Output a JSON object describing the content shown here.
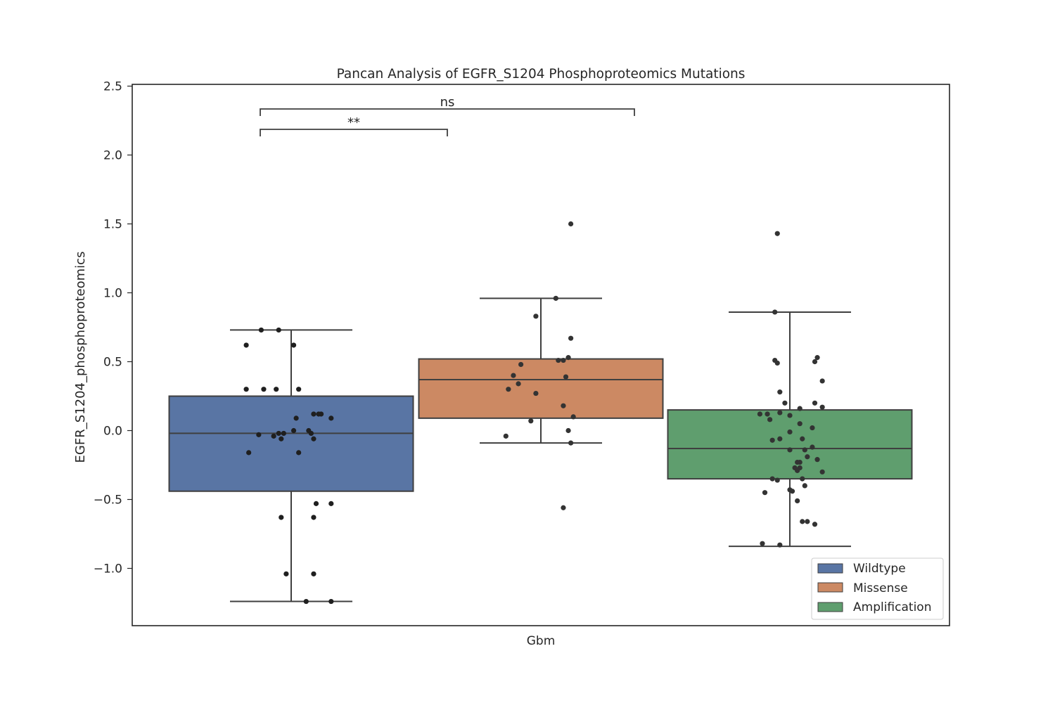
{
  "chart_data": {
    "type": "box",
    "title": "Pancan Analysis of EGFR_S1204 Phosphoproteomics Mutations",
    "xlabel": "Gbm",
    "ylabel": "EGFR_S1204_phosphoproteomics",
    "ylim": [
      -1.4,
      2.52
    ],
    "yticks": [
      -1.0,
      -0.5,
      0.0,
      0.5,
      1.0,
      1.5,
      2.0,
      2.5
    ],
    "ytick_labels": [
      "−1.0",
      "−0.5",
      "0.0",
      "0.5",
      "1.0",
      "1.5",
      "2.0",
      "2.5"
    ],
    "categories": [
      "Gbm"
    ],
    "grid": false,
    "legend_position": "lower-right",
    "series": [
      {
        "name": "Wildtype",
        "color": "#5975a4",
        "box": {
          "whisker_low": -1.24,
          "q1": -0.44,
          "median": -0.02,
          "q3": 0.25,
          "whisker_high": 0.73
        },
        "points": [
          [
            -0.18,
            0.62
          ],
          [
            0.01,
            0.62
          ],
          [
            -0.12,
            0.73
          ],
          [
            -0.05,
            0.73
          ],
          [
            -0.18,
            0.3
          ],
          [
            -0.11,
            0.3
          ],
          [
            -0.06,
            0.3
          ],
          [
            0.03,
            0.3
          ],
          [
            0.12,
            0.12
          ],
          [
            0.11,
            0.12
          ],
          [
            0.09,
            0.12
          ],
          [
            0.16,
            0.09
          ],
          [
            0.02,
            0.09
          ],
          [
            -0.13,
            -0.03
          ],
          [
            -0.07,
            -0.04
          ],
          [
            -0.05,
            -0.02
          ],
          [
            -0.03,
            -0.02
          ],
          [
            -0.04,
            -0.06
          ],
          [
            0.01,
            0.0
          ],
          [
            0.07,
            0.0
          ],
          [
            0.08,
            -0.02
          ],
          [
            0.09,
            -0.06
          ],
          [
            -0.17,
            -0.16
          ],
          [
            0.03,
            -0.16
          ],
          [
            0.1,
            -0.53
          ],
          [
            0.16,
            -0.53
          ],
          [
            -0.04,
            -0.63
          ],
          [
            0.09,
            -0.63
          ],
          [
            -0.02,
            -1.04
          ],
          [
            0.09,
            -1.04
          ],
          [
            0.06,
            -1.24
          ],
          [
            0.16,
            -1.24
          ]
        ]
      },
      {
        "name": "Missense",
        "color": "#cc8963",
        "box": {
          "whisker_low": -0.09,
          "q1": 0.09,
          "median": 0.37,
          "q3": 0.52,
          "whisker_high": 0.96
        },
        "points": [
          [
            0.12,
            1.5
          ],
          [
            0.06,
            0.96
          ],
          [
            -0.02,
            0.83
          ],
          [
            0.12,
            0.67
          ],
          [
            -0.08,
            0.48
          ],
          [
            0.07,
            0.51
          ],
          [
            0.09,
            0.51
          ],
          [
            0.11,
            0.53
          ],
          [
            -0.11,
            0.4
          ],
          [
            -0.09,
            0.34
          ],
          [
            -0.13,
            0.3
          ],
          [
            -0.02,
            0.27
          ],
          [
            0.1,
            0.39
          ],
          [
            0.09,
            0.18
          ],
          [
            0.13,
            0.1
          ],
          [
            -0.04,
            0.07
          ],
          [
            0.11,
            0.0
          ],
          [
            -0.14,
            -0.04
          ],
          [
            0.12,
            -0.09
          ],
          [
            0.09,
            -0.56
          ]
        ]
      },
      {
        "name": "Amplification",
        "color": "#5f9e6e",
        "box": {
          "whisker_low": -0.84,
          "q1": -0.35,
          "median": -0.13,
          "q3": 0.15,
          "whisker_high": 0.86
        },
        "points": [
          [
            -0.05,
            1.43
          ],
          [
            -0.06,
            0.86
          ],
          [
            -0.06,
            0.51
          ],
          [
            -0.05,
            0.49
          ],
          [
            0.1,
            0.5
          ],
          [
            0.11,
            0.53
          ],
          [
            0.13,
            0.36
          ],
          [
            -0.04,
            0.28
          ],
          [
            -0.02,
            0.2
          ],
          [
            0.1,
            0.2
          ],
          [
            0.04,
            0.16
          ],
          [
            0.13,
            0.17
          ],
          [
            -0.12,
            0.12
          ],
          [
            -0.09,
            0.12
          ],
          [
            -0.04,
            0.13
          ],
          [
            0.0,
            0.11
          ],
          [
            -0.08,
            0.08
          ],
          [
            0.04,
            0.05
          ],
          [
            0.09,
            0.02
          ],
          [
            0.0,
            -0.01
          ],
          [
            -0.07,
            -0.07
          ],
          [
            -0.04,
            -0.06
          ],
          [
            0.05,
            -0.06
          ],
          [
            0.09,
            -0.12
          ],
          [
            0.06,
            -0.14
          ],
          [
            0.0,
            -0.14
          ],
          [
            0.11,
            -0.21
          ],
          [
            0.07,
            -0.19
          ],
          [
            0.03,
            -0.23
          ],
          [
            0.04,
            -0.23
          ],
          [
            0.04,
            -0.27
          ],
          [
            0.02,
            -0.27
          ],
          [
            0.03,
            -0.29
          ],
          [
            0.13,
            -0.3
          ],
          [
            -0.07,
            -0.35
          ],
          [
            -0.05,
            -0.36
          ],
          [
            0.05,
            -0.35
          ],
          [
            0.06,
            -0.4
          ],
          [
            0.0,
            -0.43
          ],
          [
            0.01,
            -0.44
          ],
          [
            -0.1,
            -0.45
          ],
          [
            0.03,
            -0.51
          ],
          [
            0.05,
            -0.66
          ],
          [
            0.07,
            -0.66
          ],
          [
            0.1,
            -0.68
          ],
          [
            -0.11,
            -0.82
          ],
          [
            -0.04,
            -0.83
          ]
        ]
      }
    ],
    "annotations": [
      {
        "from": "Wildtype",
        "to": "Missense",
        "label": "**"
      },
      {
        "from": "Wildtype",
        "to": "Amplification",
        "label": "ns"
      }
    ]
  }
}
